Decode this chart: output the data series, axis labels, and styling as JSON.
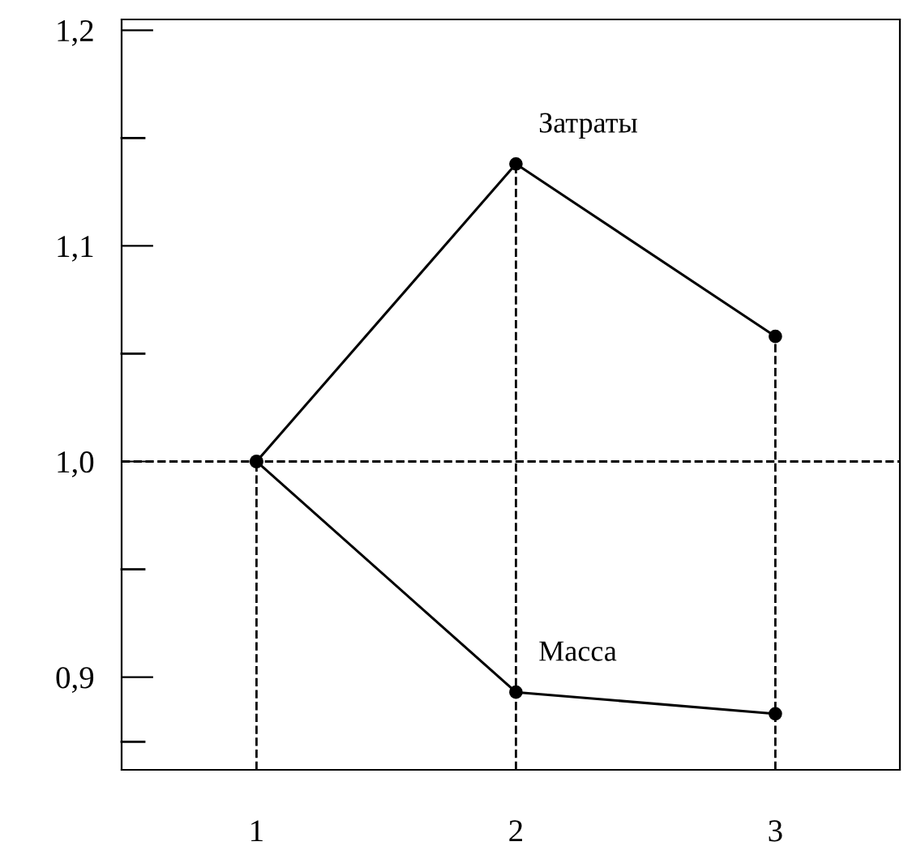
{
  "chart_data": {
    "type": "line",
    "x": [
      1,
      2,
      3
    ],
    "series": [
      {
        "name": "Затраты",
        "color": "#000000",
        "values": [
          1.0,
          1.138,
          1.058
        ]
      },
      {
        "name": "Масса",
        "color": "#000000",
        "values": [
          1.0,
          0.893,
          0.883
        ]
      }
    ],
    "xlim": [
      0.48,
      3.48
    ],
    "xticks": [
      1,
      2,
      3
    ],
    "ylim": [
      0.857,
      1.205
    ],
    "yticks": [
      {
        "value": 0.87,
        "label": null
      },
      {
        "value": 0.9,
        "label": "0,9"
      },
      {
        "value": 0.95,
        "label": null
      },
      {
        "value": 1.0,
        "label": "1,0"
      },
      {
        "value": 1.05,
        "label": null
      },
      {
        "value": 1.1,
        "label": "1,1"
      },
      {
        "value": 1.15,
        "label": null
      },
      {
        "value": 1.2,
        "label": "1,2"
      }
    ],
    "ref_lines": [
      {
        "axis": "y",
        "value": 1.0,
        "line_style": "dashed"
      },
      {
        "axis": "x",
        "value": 1,
        "line_style": "dashed"
      },
      {
        "axis": "x",
        "value": 2,
        "line_style": "dashed"
      },
      {
        "axis": "x",
        "value": 3,
        "line_style": "dashed"
      }
    ],
    "marker": "circle",
    "line_style": "solid",
    "grid": false,
    "legend": false
  }
}
